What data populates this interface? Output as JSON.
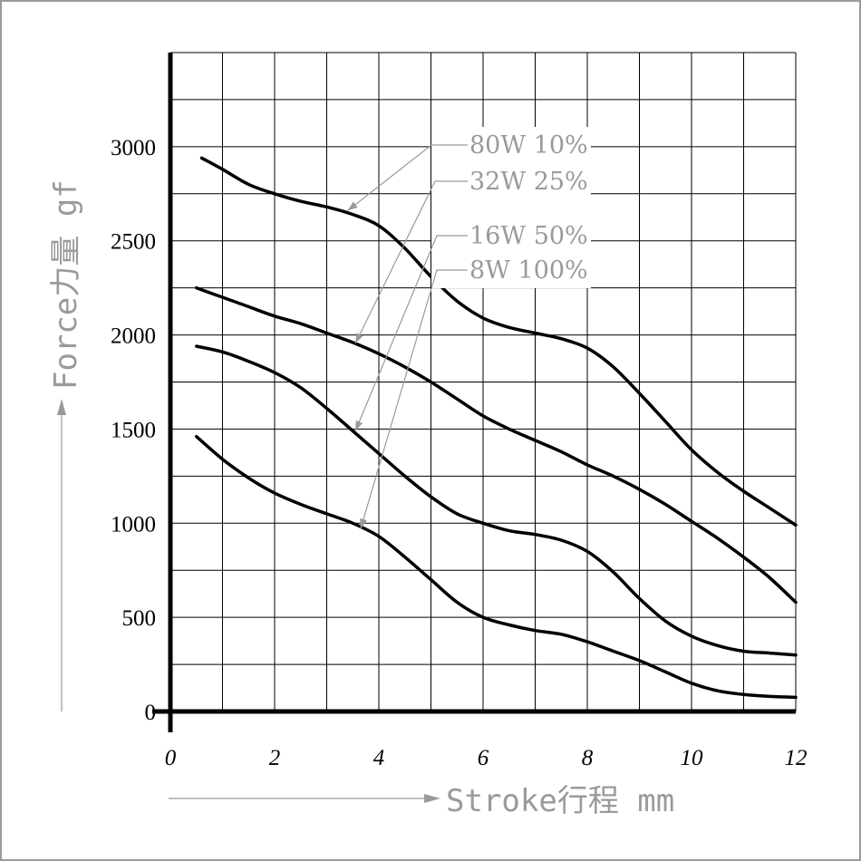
{
  "chart_data": {
    "type": "line",
    "xlabel": "Stroke行程 mm",
    "ylabel": "Force力量 gf",
    "xlim": [
      0,
      12
    ],
    "ylim": [
      0,
      3500
    ],
    "x_ticks": [
      "0",
      "2",
      "4",
      "6",
      "8",
      "10",
      "12"
    ],
    "y_ticks": [
      "0",
      "500",
      "1000",
      "1500",
      "2000",
      "2500",
      "3000"
    ],
    "grid": true,
    "legend_position": "top-center (leader-line labels)",
    "series": [
      {
        "name": "80W 10%",
        "x": [
          0.6,
          1,
          1.5,
          2,
          2.5,
          3,
          3.5,
          4,
          4.5,
          5,
          5.5,
          6,
          6.5,
          7,
          7.5,
          8,
          8.5,
          9,
          9.5,
          10,
          10.5,
          11,
          11.5,
          12
        ],
        "y": [
          2940,
          2880,
          2800,
          2750,
          2710,
          2680,
          2640,
          2580,
          2460,
          2310,
          2180,
          2090,
          2040,
          2010,
          1980,
          1930,
          1830,
          1690,
          1540,
          1390,
          1270,
          1170,
          1080,
          990
        ]
      },
      {
        "name": "32W 25%",
        "x": [
          0.5,
          1,
          1.5,
          2,
          2.5,
          3,
          3.5,
          4,
          4.5,
          5,
          5.5,
          6,
          6.5,
          7,
          7.5,
          8,
          8.5,
          9,
          9.5,
          10,
          10.5,
          11,
          11.5,
          12
        ],
        "y": [
          2250,
          2200,
          2150,
          2100,
          2060,
          2010,
          1960,
          1900,
          1830,
          1750,
          1660,
          1570,
          1500,
          1440,
          1380,
          1310,
          1250,
          1180,
          1100,
          1010,
          920,
          820,
          710,
          580
        ]
      },
      {
        "name": "16W 50%",
        "x": [
          0.5,
          1,
          1.5,
          2,
          2.5,
          3,
          3.5,
          4,
          4.5,
          5,
          5.5,
          6,
          6.5,
          7,
          7.5,
          8,
          8.5,
          9,
          9.5,
          10,
          10.5,
          11,
          11.5,
          12
        ],
        "y": [
          1940,
          1910,
          1860,
          1800,
          1720,
          1610,
          1490,
          1370,
          1250,
          1140,
          1050,
          1000,
          960,
          940,
          910,
          850,
          740,
          600,
          480,
          400,
          350,
          320,
          310,
          300
        ]
      },
      {
        "name": "8W 100%",
        "x": [
          0.5,
          1,
          1.5,
          2,
          2.5,
          3,
          3.5,
          4,
          4.5,
          5,
          5.5,
          6,
          6.5,
          7,
          7.5,
          8,
          8.5,
          9,
          9.5,
          10,
          10.5,
          11,
          11.5,
          12
        ],
        "y": [
          1460,
          1340,
          1240,
          1160,
          1100,
          1050,
          1000,
          930,
          820,
          700,
          580,
          500,
          460,
          430,
          410,
          370,
          320,
          270,
          210,
          150,
          110,
          90,
          80,
          75
        ]
      }
    ]
  }
}
